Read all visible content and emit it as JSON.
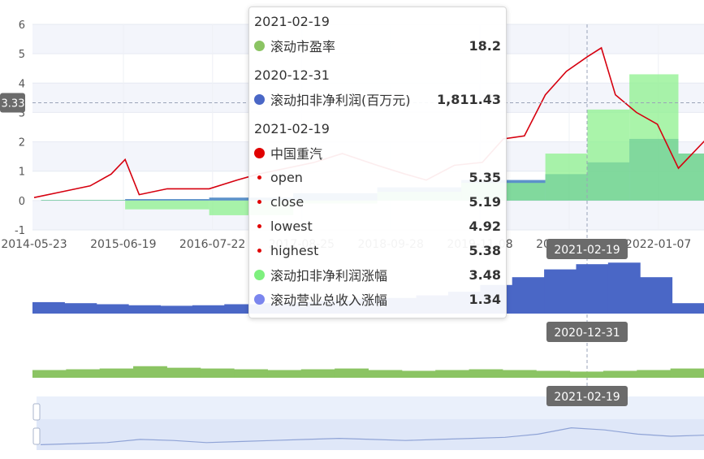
{
  "chart_data": [
    {
      "type": "line",
      "yaxis_ticks": [
        "6",
        "5",
        "4",
        "3",
        "2",
        "1",
        "0",
        "-1"
      ],
      "ylim": [
        -1,
        6
      ],
      "x_ticks": [
        "2014-05-23",
        "2015-06-19",
        "2016-07-22",
        "2017-08-25",
        "2018-09-28",
        "2019-11-08",
        "2020-12-18",
        "2022-01-07"
      ],
      "y_pointer_label": "3.33",
      "x_pointer_label": "2021-02-19",
      "kline_color": "#d6000f",
      "profit_area_color": "#8ef08e",
      "revenue_bar_color": "#3f7fc0",
      "series": [
        {
          "name": "中国重汽",
          "x": [
            "2014-05",
            "2014-09",
            "2015-01",
            "2015-04",
            "2015-06",
            "2015-08",
            "2015-12",
            "2016-06",
            "2016-10",
            "2017-01",
            "2017-05",
            "2017-09",
            "2018-01",
            "2018-06",
            "2018-10",
            "2019-01",
            "2019-05",
            "2019-09",
            "2019-12",
            "2020-03",
            "2020-06",
            "2020-09",
            "2020-12",
            "2021-02",
            "2021-04",
            "2021-07",
            "2021-10",
            "2022-01",
            "2022-05"
          ],
          "values": [
            0.1,
            0.3,
            0.5,
            0.9,
            1.4,
            0.2,
            0.4,
            0.4,
            0.7,
            0.9,
            1.1,
            1.3,
            1.6,
            1.2,
            0.9,
            0.7,
            1.2,
            1.3,
            2.1,
            2.2,
            3.6,
            4.4,
            4.9,
            5.2,
            3.6,
            3.0,
            2.6,
            1.1,
            2.1
          ]
        },
        {
          "name": "滚动扣非净利润涨幅",
          "x": [
            "2014",
            "2015",
            "2016",
            "2017",
            "2018",
            "2019",
            "2020-06",
            "2020-12",
            "2021-06",
            "2022-01"
          ],
          "values": [
            0.02,
            -0.3,
            -0.5,
            -0.1,
            0.3,
            0.6,
            1.6,
            3.1,
            4.3,
            1.6
          ]
        },
        {
          "name": "滚动营业总收入涨幅",
          "x": [
            "2014",
            "2015",
            "2016",
            "2017",
            "2018",
            "2019",
            "2020-06",
            "2020-12",
            "2021-06",
            "2022-01"
          ],
          "values": [
            0.02,
            0.05,
            0.1,
            0.25,
            0.45,
            0.7,
            0.9,
            1.3,
            2.1,
            1.6
          ]
        }
      ]
    },
    {
      "type": "bar",
      "series_name": "滚动扣非净利润(百万元)",
      "pointer_label": "2020-12-31",
      "color": "#4a67c6",
      "values": [
        0.22,
        0.2,
        0.18,
        0.16,
        0.15,
        0.16,
        0.18,
        0.2,
        0.22,
        0.25,
        0.28,
        0.3,
        0.35,
        0.42,
        0.55,
        0.7,
        0.85,
        0.95,
        0.98,
        0.7,
        0.2
      ]
    },
    {
      "type": "bar",
      "series_name": "滚动市盈率",
      "color": "#8bc463",
      "values": [
        0.5,
        0.55,
        0.6,
        0.75,
        0.65,
        0.6,
        0.55,
        0.5,
        0.55,
        0.6,
        0.5,
        0.45,
        0.5,
        0.55,
        0.5,
        0.45,
        0.4,
        0.45,
        0.5,
        0.6
      ]
    },
    {
      "type": "area",
      "role": "zoom navigator",
      "x_pointer_label": "2021-02-19",
      "values": [
        0.1,
        0.15,
        0.2,
        0.35,
        0.3,
        0.2,
        0.25,
        0.3,
        0.35,
        0.4,
        0.35,
        0.3,
        0.35,
        0.4,
        0.45,
        0.6,
        0.9,
        0.8,
        0.6,
        0.5,
        0.55
      ]
    }
  ],
  "tooltip": {
    "groups": [
      {
        "date": "2021-02-19",
        "rows": [
          {
            "label": "滚动市盈率",
            "value": "18.2",
            "color": "#8bc463"
          }
        ]
      },
      {
        "date": "2020-12-31",
        "rows": [
          {
            "label": "滚动扣非净利润(百万元)",
            "value": "1,811.43",
            "color": "#4a67c6"
          }
        ]
      },
      {
        "date": "2021-02-19",
        "rows": [
          {
            "label": "中国重汽",
            "value": "",
            "color": "#e00000"
          },
          {
            "label": "open",
            "value": "5.35",
            "color": "#e00000",
            "small": true
          },
          {
            "label": "close",
            "value": "5.19",
            "color": "#e00000",
            "small": true
          },
          {
            "label": "lowest",
            "value": "4.92",
            "color": "#e00000",
            "small": true
          },
          {
            "label": "highest",
            "value": "5.38",
            "color": "#e00000",
            "small": true
          },
          {
            "label": "滚动扣非净利润涨幅",
            "value": "3.48",
            "color": "#7ef07e"
          },
          {
            "label": "滚动营业总收入涨幅",
            "value": "1.34",
            "color": "#7b86ee"
          }
        ]
      }
    ]
  }
}
